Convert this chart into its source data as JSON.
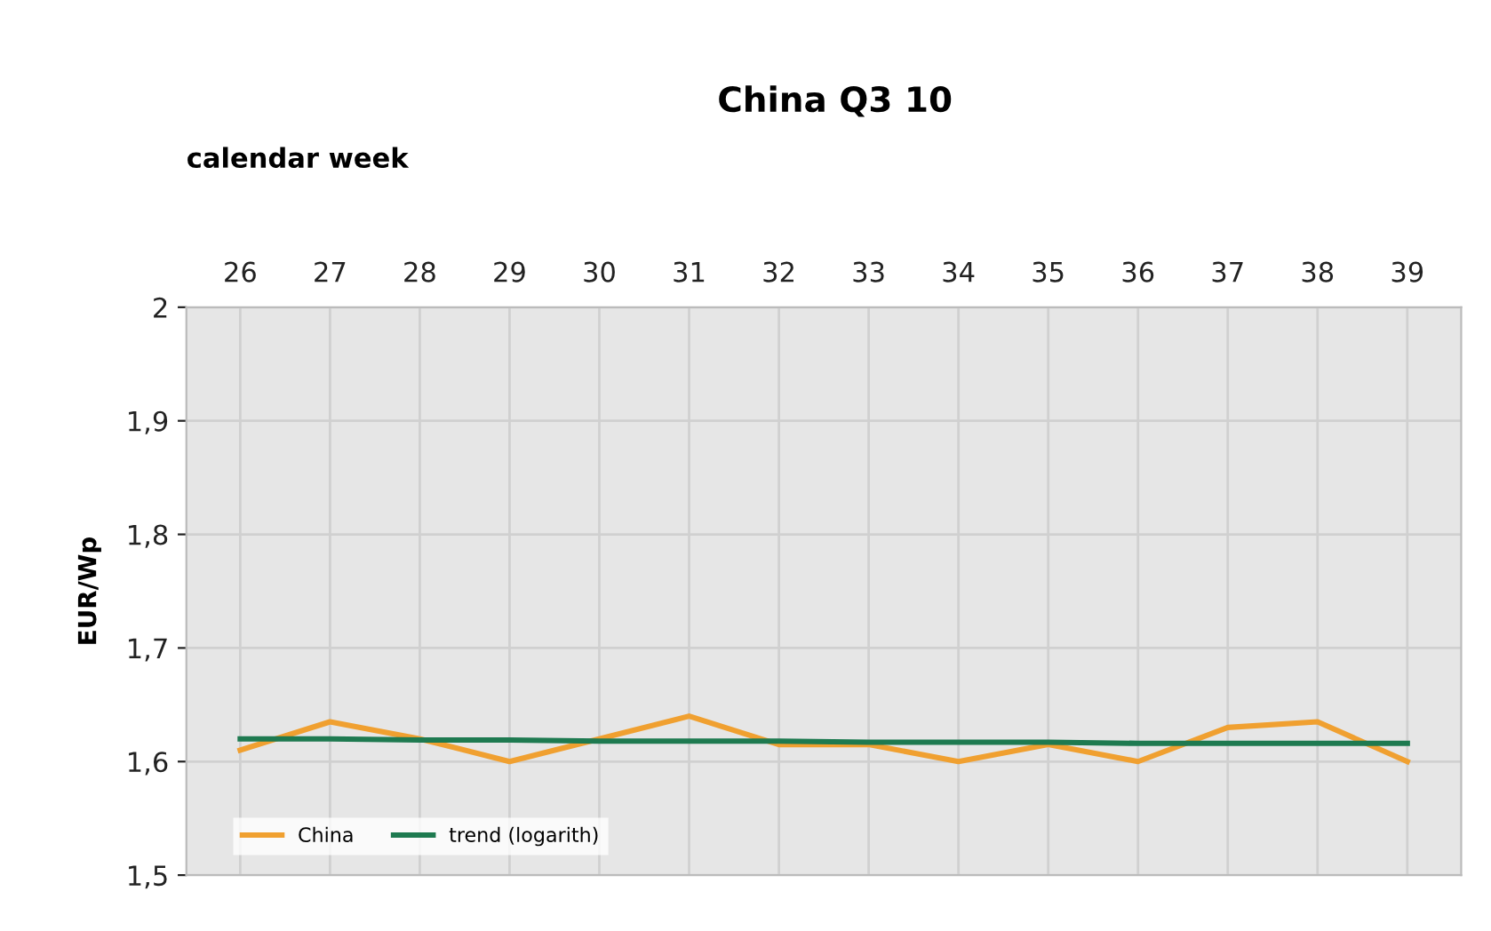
{
  "chart_data": {
    "type": "line",
    "title": "China Q3 10",
    "xlabel": "calendar week",
    "ylabel": "EUR/Wp",
    "categories": [
      "26",
      "27",
      "28",
      "29",
      "30",
      "31",
      "32",
      "33",
      "34",
      "35",
      "36",
      "37",
      "38",
      "39"
    ],
    "series": [
      {
        "name": "China",
        "color": "#f0a030",
        "values": [
          1.61,
          1.635,
          1.62,
          1.6,
          1.62,
          1.64,
          1.615,
          1.615,
          1.6,
          1.615,
          1.6,
          1.63,
          1.635,
          1.6
        ]
      },
      {
        "name": "trend (logarith)",
        "color": "#1e7a50",
        "values": [
          1.62,
          1.62,
          1.619,
          1.619,
          1.618,
          1.618,
          1.618,
          1.617,
          1.617,
          1.617,
          1.616,
          1.616,
          1.616,
          1.616
        ]
      }
    ],
    "ylim": [
      1.5,
      2
    ],
    "yticks": [
      {
        "value": 1.5,
        "label": "1,5"
      },
      {
        "value": 1.6,
        "label": "1,6"
      },
      {
        "value": 1.7,
        "label": "1,7"
      },
      {
        "value": 1.8,
        "label": "1,8"
      },
      {
        "value": 1.9,
        "label": "1,9"
      },
      {
        "value": 2,
        "label": "2"
      }
    ],
    "grid": true,
    "legend": "bottom left",
    "marker": "none",
    "line_style": "solid"
  }
}
